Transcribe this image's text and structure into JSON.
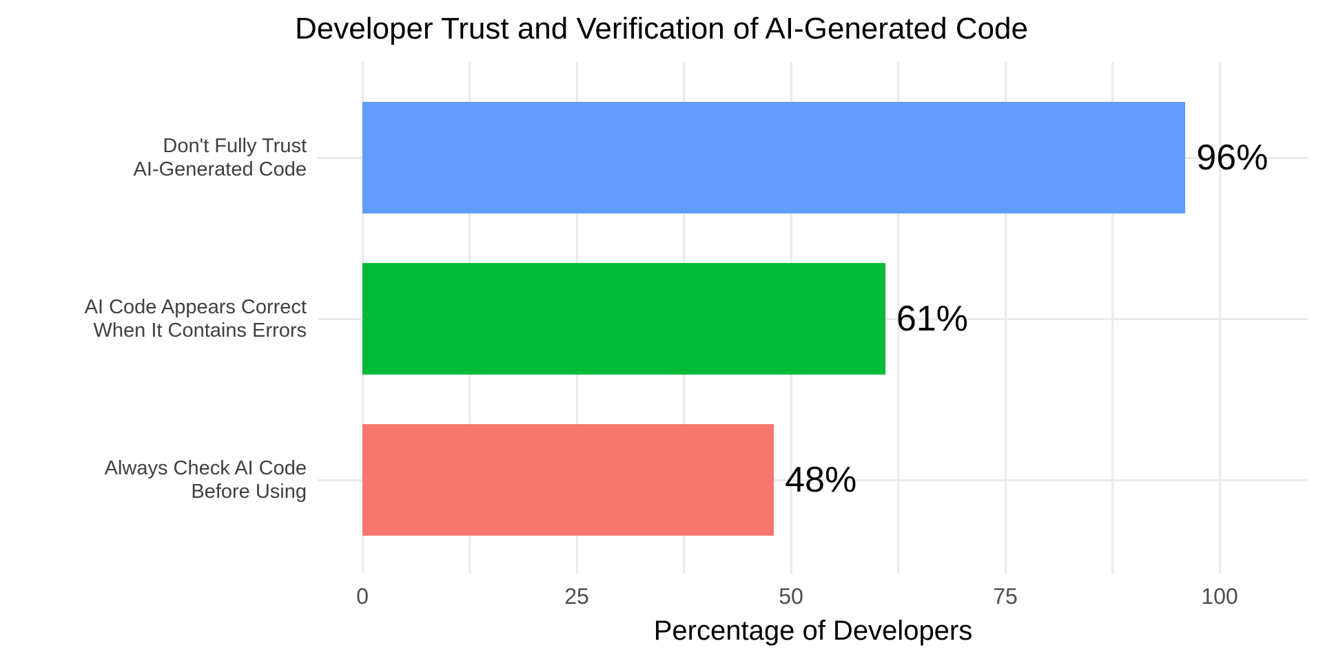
{
  "chart_data": {
    "type": "bar",
    "orientation": "horizontal",
    "title": "Developer Trust and Verification of AI-Generated Code",
    "xlabel": "Percentage of Developers",
    "ylabel": "",
    "categories": [
      "Don't Fully Trust\nAI-Generated Code",
      "AI Code Appears Correct\nWhen It Contains Errors",
      "Always Check AI Code\nBefore Using"
    ],
    "category_lines": [
      [
        "Don't Fully Trust",
        "AI-Generated Code"
      ],
      [
        "AI Code Appears Correct",
        "When It Contains Errors"
      ],
      [
        "Always Check AI Code",
        "Before Using"
      ]
    ],
    "values": [
      96,
      61,
      48
    ],
    "value_labels": [
      "96%",
      "61%",
      "48%"
    ],
    "bar_colors": [
      "#619CFF",
      "#00BA38",
      "#F8766D"
    ],
    "xlim": [
      0,
      100
    ],
    "x_major_ticks": [
      0,
      25,
      50,
      75,
      100
    ],
    "x_tick_labels": [
      "0",
      "25",
      "50",
      "75",
      "100"
    ],
    "x_minor_ticks": [
      12.5,
      37.5,
      62.5,
      87.5
    ],
    "grid": true,
    "legend": "none",
    "colors": {
      "background": "#FFFFFF",
      "gridline": "#EBEBEB",
      "title_text": "#000000",
      "axis_text": "#4D4D4D",
      "axis_title_text": "#000000",
      "category_text": "#404040",
      "value_label_text": "#000000"
    }
  }
}
